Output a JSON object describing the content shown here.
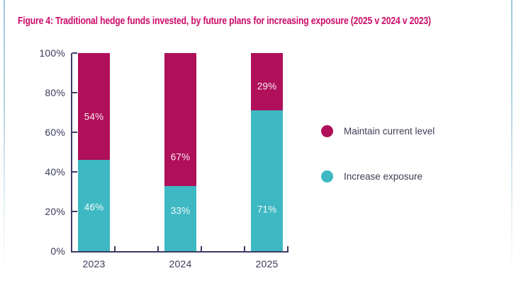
{
  "figure": {
    "title": "Figure 4: Traditional hedge funds invested, by future plans for increasing exposure (2025 v 2024 v 2023)",
    "title_color": "#cb0c69"
  },
  "legend": {
    "items": [
      {
        "label": "Maintain current level",
        "color": "#b00f5a"
      },
      {
        "label": "Increase exposure",
        "color": "#3eb8c2"
      }
    ]
  },
  "chart_data": {
    "type": "bar",
    "stacked": true,
    "title": "Figure 4: Traditional hedge funds invested, by future plans for increasing exposure (2025 v 2024 v 2023)",
    "categories": [
      "2023",
      "2024",
      "2025"
    ],
    "series": [
      {
        "name": "Increase exposure",
        "color": "#3eb8c2",
        "values": [
          46,
          33,
          71
        ]
      },
      {
        "name": "Maintain current level",
        "color": "#b00f5a",
        "values": [
          54,
          67,
          29
        ]
      }
    ],
    "unit": "%",
    "xlabel": "",
    "ylabel": "",
    "ylim": [
      0,
      100
    ],
    "y_ticks": [
      "0%",
      "20%",
      "40%",
      "60%",
      "80%",
      "100%"
    ],
    "grid": false,
    "legend_position": "right",
    "bar_label_color": "#ffffff",
    "layout_hints": {
      "axis_color": "#3c3c64",
      "tick_label_color": "#3a3a5e",
      "x_minor_tick_count": 5,
      "segment_label_y_frac": [
        [
          0.779,
          0.321
        ],
        [
          0.796,
          0.525
        ],
        [
          0.789,
          0.168
        ]
      ]
    }
  }
}
